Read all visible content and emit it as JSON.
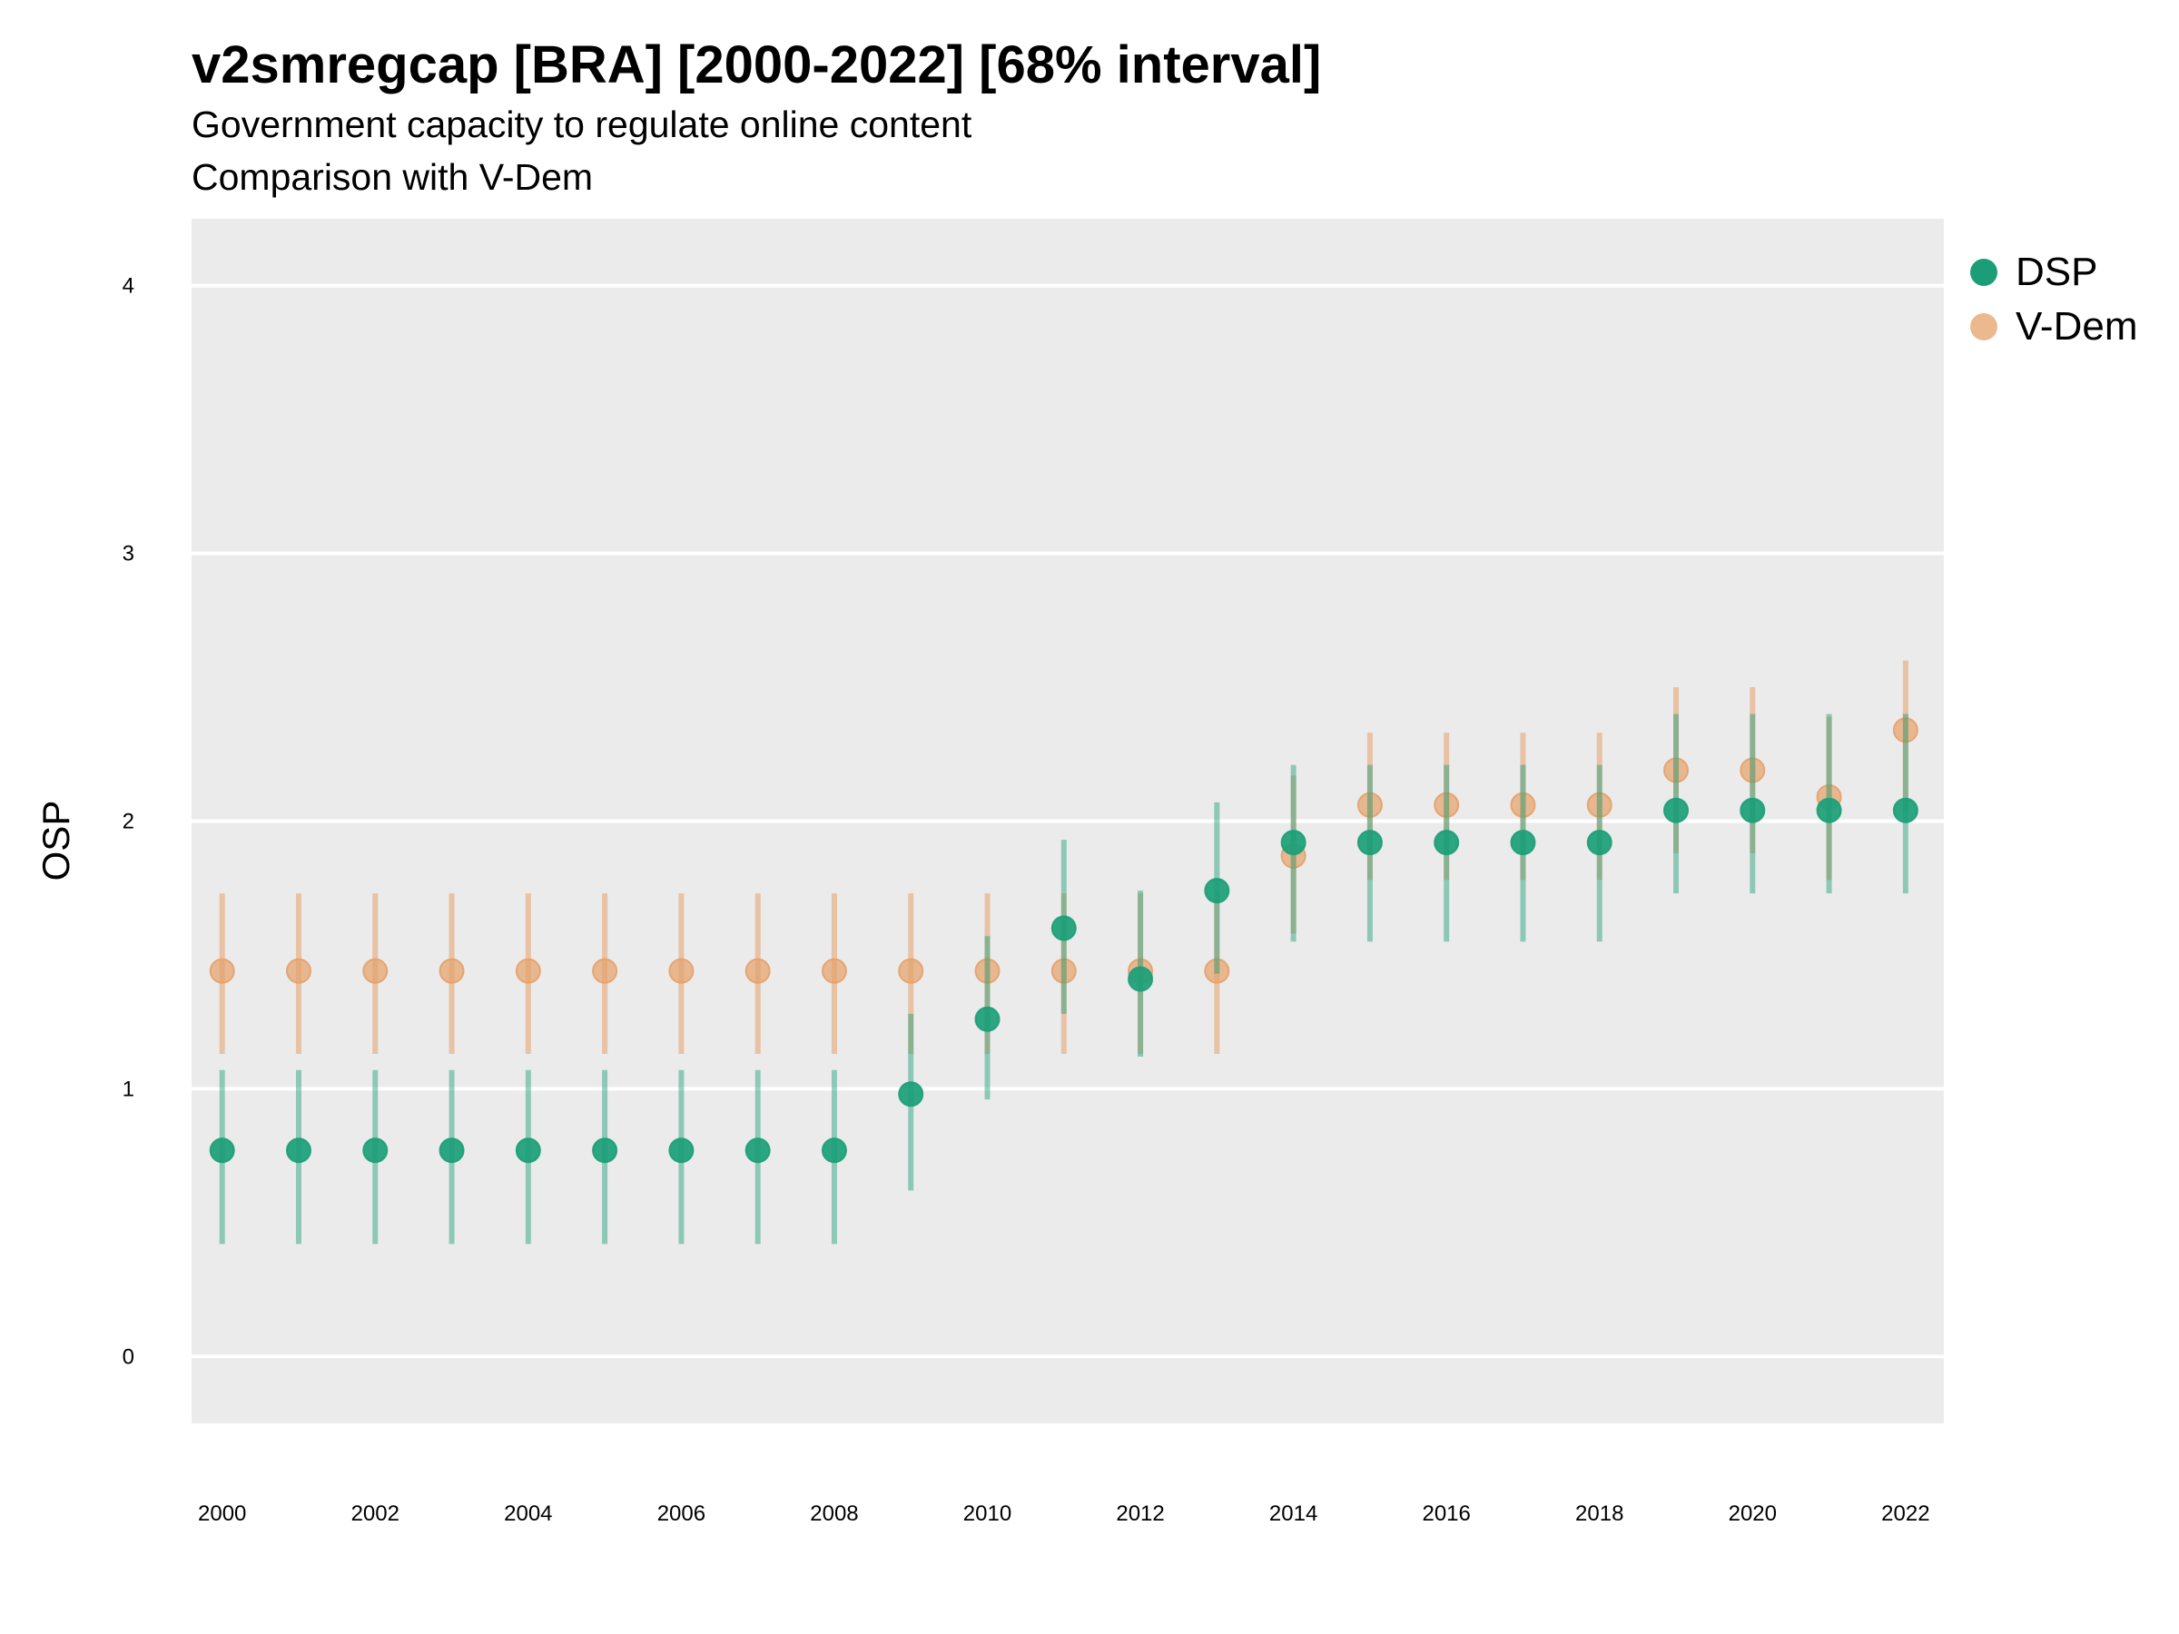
{
  "header": {
    "title": "v2smregcap [BRA] [2000-2022] [68% interval]",
    "subtitle1": "Government capacity to regulate online content",
    "subtitle2": "Comparison with V-Dem"
  },
  "colors": {
    "panel": "#ebebeb",
    "grid": "#ffffff",
    "dsp": "#1b9e77",
    "vdem": "#e6a16a"
  },
  "chart_data": {
    "type": "scatter",
    "title": "v2smregcap [BRA] [2000-2022] [68% interval]",
    "ylabel": "OSP",
    "xlabel": "",
    "ylim": [
      -0.25,
      4.25
    ],
    "xlim": [
      1999.6,
      2022.5
    ],
    "yticks": [
      0,
      1,
      2,
      3,
      4
    ],
    "xticks": [
      2000,
      2002,
      2004,
      2006,
      2008,
      2010,
      2012,
      2014,
      2016,
      2018,
      2020,
      2022
    ],
    "grid": true,
    "legend_position": "right",
    "x": [
      2000,
      2001,
      2002,
      2003,
      2004,
      2005,
      2006,
      2007,
      2008,
      2009,
      2010,
      2011,
      2012,
      2013,
      2014,
      2015,
      2016,
      2017,
      2018,
      2019,
      2020,
      2021,
      2022
    ],
    "series": [
      {
        "name": "V-Dem",
        "color": "#e6a16a",
        "values": [
          1.44,
          1.44,
          1.44,
          1.44,
          1.44,
          1.44,
          1.44,
          1.44,
          1.44,
          1.44,
          1.44,
          1.44,
          1.44,
          1.44,
          1.87,
          2.06,
          2.06,
          2.06,
          2.06,
          2.19,
          2.19,
          2.09,
          2.34
        ],
        "lower": [
          1.13,
          1.13,
          1.13,
          1.13,
          1.13,
          1.13,
          1.13,
          1.13,
          1.13,
          1.13,
          1.13,
          1.13,
          1.13,
          1.13,
          1.58,
          1.78,
          1.78,
          1.78,
          1.78,
          1.88,
          1.88,
          1.78,
          2.04
        ],
        "upper": [
          1.73,
          1.73,
          1.73,
          1.73,
          1.73,
          1.73,
          1.73,
          1.73,
          1.73,
          1.73,
          1.73,
          1.73,
          1.73,
          1.73,
          2.17,
          2.33,
          2.33,
          2.33,
          2.33,
          2.5,
          2.5,
          2.39,
          2.6
        ]
      },
      {
        "name": "DSP",
        "color": "#1b9e77",
        "values": [
          0.77,
          0.77,
          0.77,
          0.77,
          0.77,
          0.77,
          0.77,
          0.77,
          0.77,
          0.98,
          1.26,
          1.6,
          1.41,
          1.74,
          1.92,
          1.92,
          1.92,
          1.92,
          1.92,
          2.04,
          2.04,
          2.04,
          2.04
        ],
        "lower": [
          0.42,
          0.42,
          0.42,
          0.42,
          0.42,
          0.42,
          0.42,
          0.42,
          0.42,
          0.62,
          0.96,
          1.28,
          1.12,
          1.43,
          1.55,
          1.55,
          1.55,
          1.55,
          1.55,
          1.73,
          1.73,
          1.73,
          1.73
        ],
        "upper": [
          1.07,
          1.07,
          1.07,
          1.07,
          1.07,
          1.07,
          1.07,
          1.07,
          1.07,
          1.28,
          1.57,
          1.93,
          1.74,
          2.07,
          2.21,
          2.21,
          2.21,
          2.21,
          2.21,
          2.4,
          2.4,
          2.4,
          2.4
        ]
      }
    ]
  }
}
